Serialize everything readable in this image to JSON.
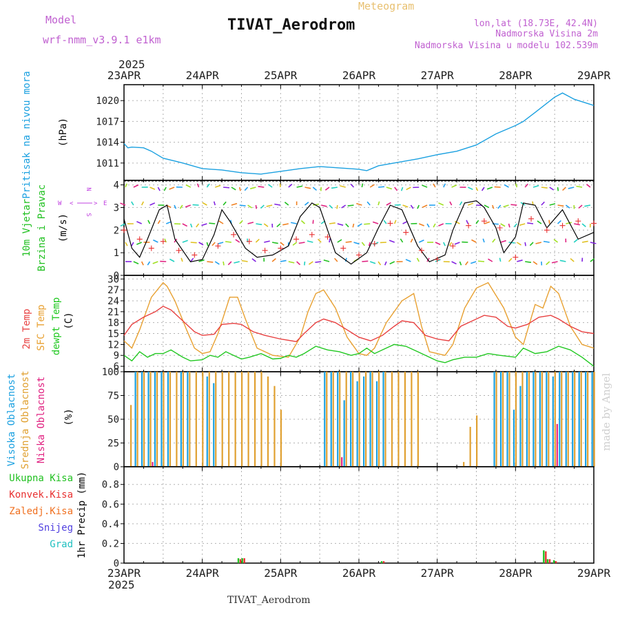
{
  "header": {
    "model_label": "Model",
    "model_name": "wrf-nmm_v3.9.1 e1km",
    "meteogram_label": "Meteogram",
    "title": "TIVAT_Aerodrom",
    "coords": "lon,lat (18.73E, 42.4N)",
    "altitude": "Nadmorska Visina 2m",
    "model_altitude": "Nadmorska Visina u modelu 102.539m",
    "year": "2025"
  },
  "footer": {
    "title": "TIVAT_Aerodrom",
    "credit": "made by Angel"
  },
  "colors": {
    "pressure": "#1aa0e0",
    "wind_speed": "#000000",
    "wind_gust": "#e83030",
    "temp_2m": "#e84040",
    "temp_sfc": "#e8a030",
    "dewpoint": "#20c820",
    "cloud_high": "#1aa0e0",
    "cloud_mid": "#e0a030",
    "cloud_low": "#e02080",
    "precip_total": "#20c020",
    "precip_conv": "#e83030",
    "precip_frozen": "#f07020",
    "precip_snow": "#5040e0",
    "precip_hail": "#20c0c0",
    "compass": "#c040e0"
  },
  "chart_data": [
    {
      "type": "line",
      "panel": "pressure",
      "ylabel_parts": [
        "Pritisak na nivou mora",
        "(hPa)"
      ],
      "yticks": [
        1011,
        1014,
        1017,
        1020
      ],
      "ylim": [
        1008.5,
        1022.3
      ],
      "xticks": [
        "23APR",
        "24APR",
        "25APR",
        "26APR",
        "27APR",
        "28APR",
        "29APR"
      ],
      "series": [
        {
          "x": [
            0,
            0.05,
            0.1,
            0.25,
            0.35,
            0.5,
            0.75,
            1.0,
            1.25,
            1.5,
            1.75,
            2.0,
            2.25,
            2.5,
            2.75,
            3.0,
            3.1,
            3.25,
            3.5,
            3.75,
            4.0,
            4.25,
            4.5,
            4.75,
            5.0,
            5.1,
            5.25,
            5.5,
            5.6,
            5.75,
            6.0
          ],
          "values": [
            1013.8,
            1013.2,
            1013.3,
            1013.2,
            1012.7,
            1011.7,
            1011.0,
            1010.2,
            1010.0,
            1009.6,
            1009.4,
            1009.8,
            1010.2,
            1010.5,
            1010.3,
            1010.1,
            1009.9,
            1010.6,
            1011.1,
            1011.6,
            1012.2,
            1012.7,
            1013.6,
            1015.2,
            1016.4,
            1017.0,
            1018.3,
            1020.5,
            1021.1,
            1020.2,
            1019.3
          ]
        }
      ]
    },
    {
      "type": "line",
      "panel": "wind",
      "ylabel_parts": [
        "10m Vjetar",
        "Brzina i Pravac",
        "(m/s)"
      ],
      "compass": {
        "top": "N",
        "bottom": "S",
        "left": "W",
        "right": "E",
        "left_arrow": "<",
        "right_arrow": ">",
        "arrow_up": "^",
        "arrow_down": "v",
        "vert_left": "<--",
        "vert_right": "-->"
      },
      "yticks": [
        0,
        1,
        2,
        3,
        4
      ],
      "ylim": [
        0,
        4.2
      ],
      "series": [
        {
          "name": "speed",
          "x": [
            0,
            0.1,
            0.2,
            0.3,
            0.45,
            0.55,
            0.65,
            0.85,
            1.0,
            1.15,
            1.25,
            1.35,
            1.55,
            1.7,
            1.9,
            2.1,
            2.25,
            2.4,
            2.5,
            2.7,
            2.9,
            3.1,
            3.25,
            3.4,
            3.55,
            3.75,
            3.9,
            4.1,
            4.2,
            4.35,
            4.5,
            4.6,
            4.75,
            4.85,
            5.0,
            5.1,
            5.25,
            5.4,
            5.6,
            5.8,
            6.0
          ],
          "values": [
            2.5,
            1.2,
            0.8,
            1.6,
            2.9,
            3.1,
            1.6,
            0.6,
            0.7,
            1.8,
            2.9,
            2.4,
            1.2,
            0.8,
            0.9,
            1.3,
            2.6,
            3.2,
            3.0,
            1.0,
            0.5,
            1.0,
            2.1,
            3.1,
            2.9,
            1.3,
            0.6,
            0.9,
            2.0,
            3.2,
            3.3,
            3.0,
            2.1,
            1.0,
            1.7,
            3.2,
            3.1,
            2.1,
            2.9,
            1.6,
            1.9
          ]
        },
        {
          "name": "gust",
          "x": [
            0,
            0.2,
            0.35,
            0.5,
            0.7,
            0.9,
            1.2,
            1.4,
            1.6,
            1.8,
            2.0,
            2.2,
            2.4,
            2.6,
            2.8,
            3.0,
            3.2,
            3.4,
            3.6,
            3.8,
            4.0,
            4.2,
            4.4,
            4.6,
            4.8,
            5.0,
            5.2,
            5.4,
            5.6,
            5.8,
            6.0
          ],
          "values": [
            2.0,
            1.6,
            1.2,
            1.5,
            1.1,
            0.9,
            1.3,
            1.8,
            1.5,
            1.1,
            1.2,
            1.6,
            1.8,
            1.7,
            1.2,
            0.9,
            1.4,
            2.3,
            1.9,
            1.1,
            0.7,
            1.3,
            2.2,
            2.4,
            2.1,
            0.8,
            2.5,
            2.0,
            2.2,
            2.4,
            2.3
          ]
        }
      ]
    },
    {
      "type": "line",
      "panel": "temperature",
      "ylabel_parts": [
        "2m Temp",
        "SFC Temp",
        "dewpt Temp",
        "(C)"
      ],
      "yticks": [
        6,
        9,
        12,
        15,
        18,
        21,
        24,
        27,
        30
      ],
      "ylim": [
        4.5,
        31
      ],
      "series": [
        {
          "name": "2m",
          "x": [
            0,
            0.1,
            0.25,
            0.4,
            0.5,
            0.6,
            0.75,
            0.9,
            1.0,
            1.15,
            1.25,
            1.4,
            1.5,
            1.65,
            1.8,
            2.0,
            2.2,
            2.3,
            2.45,
            2.55,
            2.7,
            2.85,
            3.0,
            3.15,
            3.3,
            3.45,
            3.55,
            3.7,
            3.85,
            4.0,
            4.15,
            4.3,
            4.5,
            4.6,
            4.75,
            4.9,
            5.0,
            5.15,
            5.3,
            5.45,
            5.55,
            5.7,
            5.85,
            6.0
          ],
          "values": [
            14.5,
            17.5,
            19.5,
            21.0,
            22.5,
            21.5,
            18.5,
            15.5,
            14.5,
            14.8,
            17.5,
            17.8,
            17.5,
            15.5,
            14.5,
            13.5,
            12.8,
            15.0,
            18.0,
            19.0,
            18.0,
            16.0,
            14.0,
            13.0,
            14.5,
            17.0,
            18.5,
            18.0,
            14.5,
            13.5,
            13.0,
            17.0,
            19.0,
            20.0,
            19.5,
            17.0,
            16.5,
            17.5,
            19.5,
            20.0,
            19.0,
            17.0,
            15.5,
            15.0
          ]
        },
        {
          "name": "sfc",
          "x": [
            0,
            0.1,
            0.2,
            0.35,
            0.5,
            0.55,
            0.65,
            0.8,
            0.9,
            1.0,
            1.1,
            1.2,
            1.35,
            1.45,
            1.55,
            1.7,
            1.9,
            2.1,
            2.25,
            2.35,
            2.45,
            2.55,
            2.7,
            2.85,
            3.0,
            3.1,
            3.2,
            3.35,
            3.55,
            3.7,
            3.8,
            3.9,
            4.0,
            4.1,
            4.2,
            4.35,
            4.5,
            4.65,
            4.85,
            5.0,
            5.1,
            5.25,
            5.35,
            5.45,
            5.55,
            5.7,
            5.85,
            6.0
          ],
          "values": [
            13,
            11,
            16,
            25,
            29,
            28,
            24,
            16,
            11,
            9.5,
            10,
            15,
            25,
            25,
            19,
            11,
            9,
            8.5,
            14,
            21,
            26,
            27,
            22,
            14,
            9.5,
            9,
            11,
            18,
            24,
            26,
            17,
            10,
            9.5,
            9,
            12,
            22,
            27.5,
            29,
            22,
            14,
            12,
            23,
            22,
            28,
            26,
            17,
            12,
            11
          ]
        },
        {
          "name": "dewpt",
          "x": [
            0,
            0.1,
            0.2,
            0.3,
            0.4,
            0.5,
            0.6,
            0.75,
            0.85,
            1.0,
            1.1,
            1.2,
            1.3,
            1.4,
            1.5,
            1.6,
            1.75,
            1.9,
            2.0,
            2.1,
            2.2,
            2.3,
            2.45,
            2.6,
            2.75,
            2.9,
            3.0,
            3.1,
            3.2,
            3.3,
            3.45,
            3.6,
            3.75,
            3.9,
            4.0,
            4.1,
            4.2,
            4.35,
            4.5,
            4.65,
            4.8,
            5.0,
            5.1,
            5.25,
            5.4,
            5.55,
            5.7,
            5.85,
            6.0
          ],
          "values": [
            9,
            7.5,
            10,
            8.5,
            9.5,
            9.5,
            10.5,
            8.5,
            7.5,
            7.8,
            9,
            8.5,
            10,
            9,
            8,
            8.5,
            9.5,
            8,
            8.2,
            9,
            8.5,
            9.5,
            11.5,
            10.5,
            10,
            9,
            9.5,
            11,
            9.5,
            10.5,
            12,
            11.5,
            10,
            8.5,
            7.5,
            7,
            7.8,
            8.5,
            8.5,
            9.5,
            9,
            8.5,
            11,
            9.5,
            10,
            11.5,
            10.5,
            8.5,
            6
          ]
        }
      ]
    },
    {
      "type": "bar",
      "panel": "cloud",
      "ylabel_parts": [
        "Visoka Oblacnost",
        "Srednja Oblacnost",
        "Niska Oblacnost",
        "(%)"
      ],
      "yticks": [
        0,
        25,
        50,
        75,
        100
      ],
      "ylim": [
        0,
        100
      ],
      "series": [
        {
          "name": "high",
          "values": [
            0,
            100,
            100,
            100,
            100,
            100,
            100,
            0,
            100,
            100,
            0,
            0,
            95,
            88,
            0,
            0,
            0,
            0,
            0,
            0,
            0,
            0,
            0,
            0,
            0,
            0,
            0,
            0,
            0,
            0,
            100,
            100,
            100,
            70,
            100,
            90,
            95,
            100,
            90,
            100,
            0,
            0,
            0,
            0,
            0,
            0,
            0,
            0,
            0,
            0,
            0,
            0,
            0,
            0,
            0,
            0,
            100,
            100,
            100,
            60,
            85,
            100,
            100,
            100,
            100,
            95,
            100,
            100,
            100,
            100,
            100,
            100
          ]
        },
        {
          "name": "mid",
          "values": [
            65,
            100,
            100,
            100,
            100,
            100,
            100,
            100,
            100,
            100,
            100,
            100,
            100,
            100,
            100,
            100,
            100,
            100,
            100,
            100,
            100,
            95,
            85,
            60,
            0,
            0,
            0,
            0,
            0,
            0,
            100,
            100,
            100,
            100,
            100,
            100,
            100,
            100,
            100,
            100,
            100,
            100,
            100,
            100,
            100,
            0,
            0,
            0,
            0,
            0,
            0,
            5,
            42,
            54,
            0,
            0,
            100,
            100,
            100,
            100,
            100,
            100,
            100,
            100,
            100,
            100,
            100,
            100,
            100,
            100,
            100,
            100
          ]
        },
        {
          "name": "low",
          "values": [
            0,
            0,
            0,
            5,
            0,
            0,
            0,
            0,
            0,
            0,
            0,
            0,
            0,
            0,
            0,
            0,
            0,
            0,
            0,
            0,
            0,
            0,
            0,
            0,
            0,
            0,
            0,
            0,
            0,
            0,
            0,
            0,
            10,
            0,
            0,
            0,
            0,
            0,
            0,
            0,
            0,
            0,
            0,
            0,
            0,
            0,
            0,
            0,
            0,
            0,
            0,
            0,
            0,
            0,
            0,
            0,
            0,
            0,
            0,
            0,
            0,
            0,
            0,
            0,
            0,
            45,
            0,
            0,
            0,
            0,
            0,
            0
          ]
        }
      ]
    },
    {
      "type": "bar",
      "panel": "precip",
      "ylabel_parts": [
        "1hr Precip (mm)"
      ],
      "legend": [
        "Ukupna Kisa",
        "Konvek.Kisa",
        "Zaledj.Kisa",
        "Snijeg",
        "Grad"
      ],
      "yticks": [
        0,
        0.2,
        0.4,
        0.6,
        0.8
      ],
      "ylim": [
        0,
        0.98
      ],
      "series": [
        {
          "name": "total",
          "x": [
            1.45,
            1.5,
            3.28,
            5.35,
            5.4,
            5.48
          ],
          "values": [
            0.05,
            0.05,
            0.02,
            0.13,
            0.04,
            0.03
          ]
        },
        {
          "name": "conv",
          "x": [
            1.45,
            1.5,
            3.28,
            5.35,
            5.4,
            5.48
          ],
          "values": [
            0.04,
            0.05,
            0.02,
            0.12,
            0.04,
            0.02
          ]
        }
      ]
    }
  ]
}
